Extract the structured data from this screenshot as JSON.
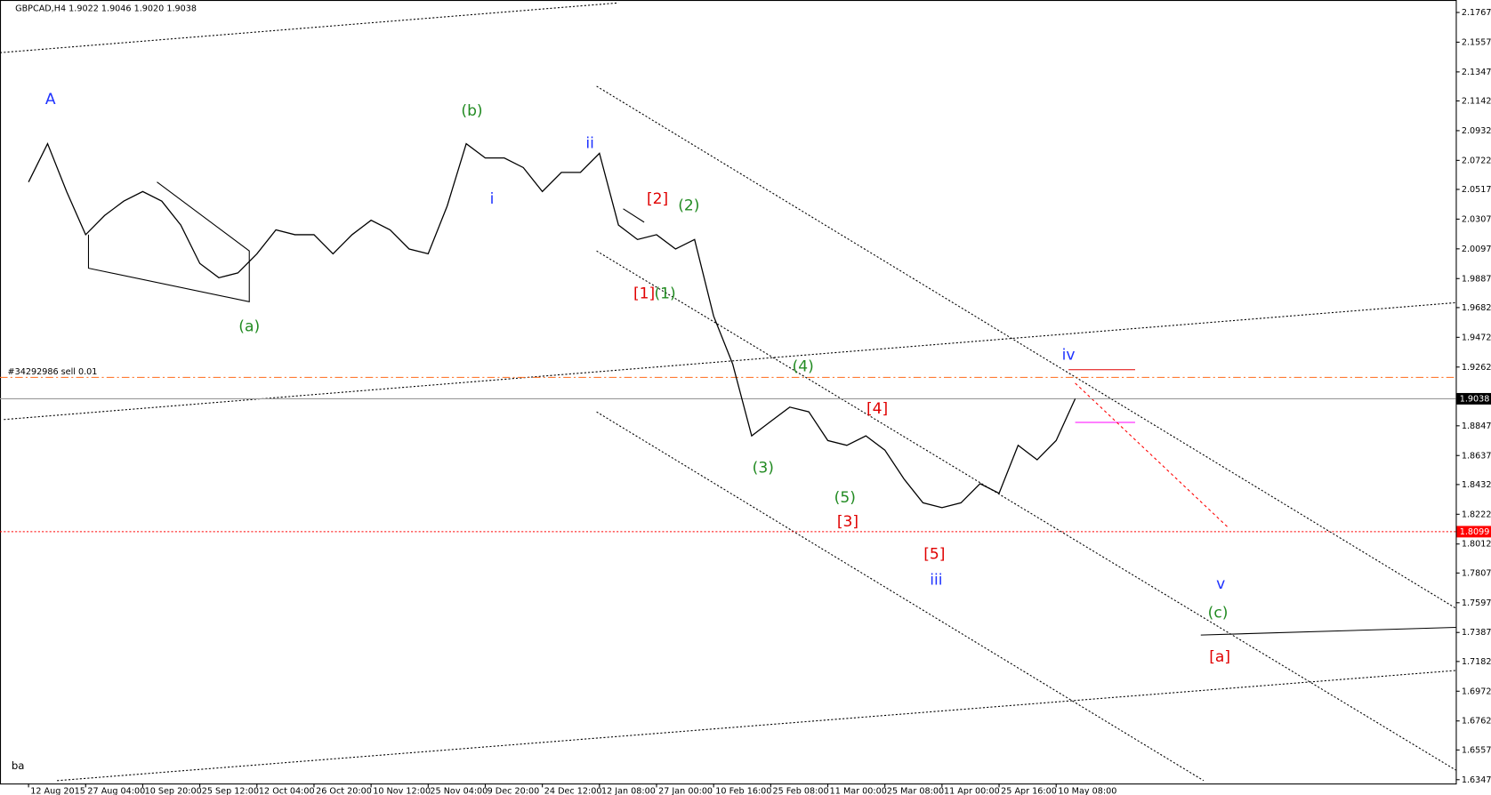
{
  "chart_data": {
    "type": "line",
    "header": "GBPCAD,H4  1.9022 1.9046 1.9020 1.9038",
    "order_label": "#34292986 sell 0.01",
    "corner_label": "ba",
    "categories": [
      "12 Aug 2015",
      null,
      null,
      "27 Aug 04:00",
      null,
      null,
      "10 Sep 20:00",
      null,
      null,
      "25 Sep 12:00",
      null,
      null,
      "12 Oct 04:00",
      null,
      null,
      "26 Oct 20:00",
      null,
      null,
      "10 Nov 12:00",
      null,
      null,
      "25 Nov 04:00",
      null,
      null,
      "9 Dec 20:00",
      null,
      null,
      "24 Dec 12:00",
      null,
      null,
      "12 Jan 08:00",
      null,
      null,
      "27 Jan 00:00",
      null,
      null,
      "10 Feb 16:00",
      null,
      null,
      "25 Feb 08:00",
      null,
      null,
      "11 Mar 00:00",
      null,
      null,
      "25 Mar 08:00",
      null,
      null,
      "11 Apr 00:00",
      null,
      null,
      "25 Apr 16:00",
      null,
      null,
      "10 May 08:00",
      null
    ],
    "series": [
      {
        "name": "GBPCAD",
        "color": "#000000",
        "values": [
          2.0569,
          2.084,
          2.0502,
          2.0197,
          2.0333,
          2.0434,
          2.0502,
          2.0434,
          2.0265,
          1.9994,
          1.9893,
          1.9927,
          2.0062,
          2.0231,
          2.0197,
          2.0197,
          2.0062,
          2.0197,
          2.0299,
          2.0231,
          2.0096,
          2.0062,
          2.04,
          2.084,
          2.0739,
          2.0739,
          2.0671,
          2.0502,
          2.0637,
          2.0637,
          2.0772,
          2.0265,
          2.0163,
          2.0197,
          2.0096,
          2.0163,
          1.9622,
          1.9284,
          1.8776,
          1.8878,
          1.8979,
          1.8946,
          1.8743,
          1.8709,
          1.8776,
          1.8675,
          1.8472,
          1.8303,
          1.8269,
          1.8303,
          1.8438,
          1.837,
          1.8709,
          1.8607,
          1.8743,
          1.9038
        ]
      }
    ],
    "ylim": [
      1.632,
      2.1855
    ],
    "yticks": [
      2.1767,
      2.1557,
      2.1347,
      2.1142,
      2.0932,
      2.0722,
      2.0517,
      2.0307,
      2.0097,
      1.9887,
      1.9682,
      1.9472,
      1.9262,
      1.8847,
      1.8637,
      1.8432,
      1.8222,
      1.8012,
      1.7807,
      1.7597,
      1.7387,
      1.7182,
      1.6972,
      1.6762,
      1.6557,
      1.6347
    ],
    "price_markers": [
      {
        "value": 1.9038,
        "color": "#000000"
      },
      {
        "value": 1.8099,
        "color": "#ff0000"
      }
    ],
    "annotations": [
      {
        "text": "A",
        "color": "#1e32ff"
      },
      {
        "text": "(b)",
        "color": "#228b22"
      },
      {
        "text": "ii",
        "color": "#1e32ff"
      },
      {
        "text": "i",
        "color": "#1e32ff"
      },
      {
        "text": "[2]",
        "color": "#e00000"
      },
      {
        "text": "(2)",
        "color": "#228b22"
      },
      {
        "text": "[1]",
        "color": "#e00000"
      },
      {
        "text": "(1)",
        "color": "#228b22"
      },
      {
        "text": "(a)",
        "color": "#228b22"
      },
      {
        "text": "(4)",
        "color": "#228b22"
      },
      {
        "text": "iv",
        "color": "#1e32ff"
      },
      {
        "text": "[4]",
        "color": "#e00000"
      },
      {
        "text": "(3)",
        "color": "#228b22"
      },
      {
        "text": "(5)",
        "color": "#228b22"
      },
      {
        "text": "[3]",
        "color": "#e00000"
      },
      {
        "text": "[5]",
        "color": "#e00000"
      },
      {
        "text": "iii",
        "color": "#1e32ff"
      },
      {
        "text": "v",
        "color": "#1e32ff"
      },
      {
        "text": "(c)",
        "color": "#228b22"
      },
      {
        "text": "[a]",
        "color": "#e00000"
      }
    ]
  }
}
